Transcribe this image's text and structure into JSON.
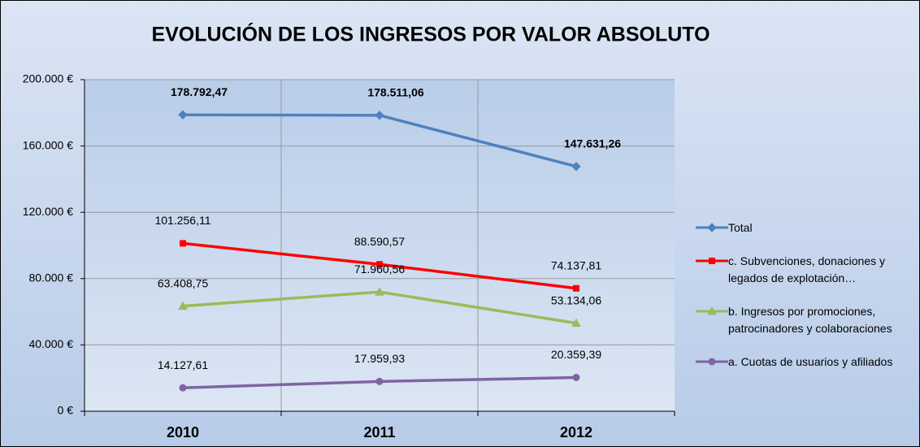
{
  "chart_data": {
    "type": "line",
    "title": "EVOLUCIÓN DE LOS INGRESOS POR VALOR ABSOLUTO",
    "categories": [
      "2010",
      "2011",
      "2012"
    ],
    "series": [
      {
        "name": "Total",
        "color": "#4f81bd",
        "marker": "diamond",
        "bold_labels": true,
        "values": [
          178792.47,
          178511.06,
          147631.26
        ],
        "value_labels": [
          "178.792,47",
          "178.511,06",
          "147.631,26"
        ]
      },
      {
        "name": "c. Subvenciones, donaciones y legados de explotación…",
        "color": "#ff0000",
        "marker": "square",
        "values": [
          101256.11,
          88590.57,
          74137.81
        ],
        "value_labels": [
          "101.256,11",
          "88.590,57",
          "74.137,81"
        ]
      },
      {
        "name": "b. Ingresos por promociones, patrocinadores y colaboraciones",
        "color": "#9bbb59",
        "marker": "triangle",
        "values": [
          63408.75,
          71960.56,
          53134.06
        ],
        "value_labels": [
          "63.408,75",
          "71.960,56",
          "53.134,06"
        ]
      },
      {
        "name": "a. Cuotas de usuarios y afiliados",
        "color": "#8064a2",
        "marker": "circle",
        "values": [
          14127.61,
          17959.93,
          20359.39
        ],
        "value_labels": [
          "14.127,61",
          "17.959,93",
          "20.359,39"
        ]
      }
    ],
    "ylim": [
      0,
      200000
    ],
    "yticks": [
      {
        "value": 0,
        "label": "0 €"
      },
      {
        "value": 40000,
        "label": "40.000 €"
      },
      {
        "value": 80000,
        "label": "80.000 €"
      },
      {
        "value": 120000,
        "label": "120.000 €"
      },
      {
        "value": 160000,
        "label": "160.000 €"
      },
      {
        "value": 200000,
        "label": "200.000 €"
      }
    ],
    "grid": true,
    "legend": "right"
  }
}
